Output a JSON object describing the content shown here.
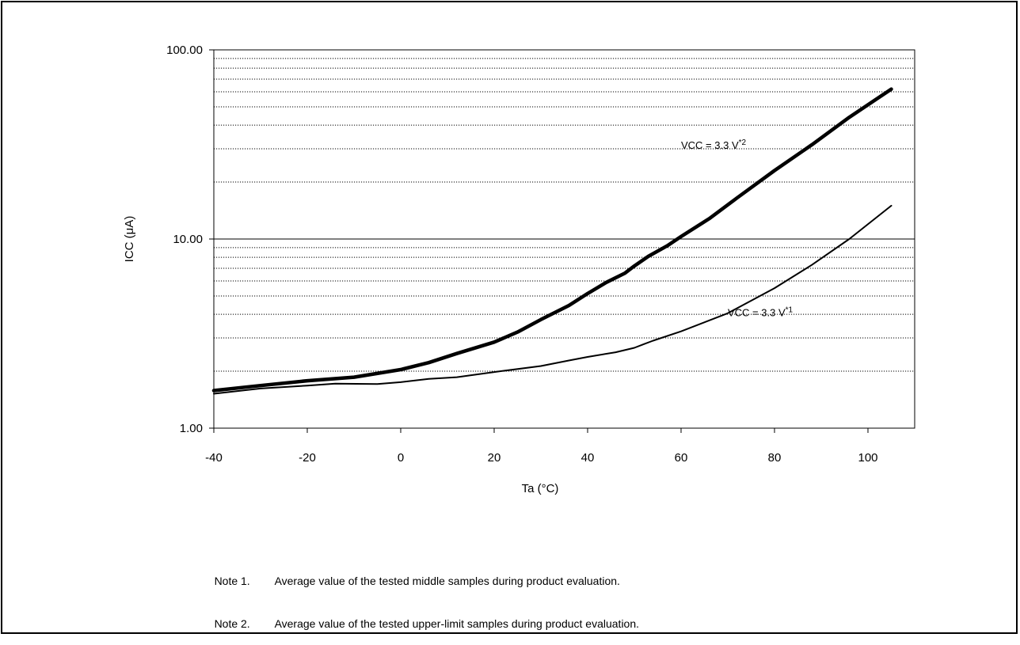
{
  "chart_data": {
    "type": "line",
    "title": "",
    "xlabel": "Ta (°C)",
    "ylabel": "ICC (μA)",
    "xlim": [
      -40,
      110
    ],
    "ylim": [
      1,
      100
    ],
    "y_scale": "log",
    "grid": "horizontal dotted minor lines, solid line at 10.00",
    "x_ticks": [
      -40,
      -20,
      0,
      20,
      40,
      60,
      80,
      100
    ],
    "x_tick_labels": [
      "-40",
      "-20",
      "0",
      "20",
      "40",
      "60",
      "80",
      "100"
    ],
    "y_ticks": [
      1,
      10,
      100
    ],
    "y_tick_labels": [
      "1.00",
      "10.00",
      "100.00"
    ],
    "series": [
      {
        "name": "VCC = 3.3 V*2",
        "label_text": "VCC = 3.3 V",
        "label_sup": "*2",
        "line_weight": "thick",
        "label_anchor": [
          60,
          30
        ],
        "x": [
          -40,
          -30,
          -20,
          -10,
          0,
          6,
          12,
          20,
          25,
          30,
          36,
          40,
          44,
          48,
          50,
          53,
          57,
          60,
          66,
          72,
          80,
          88,
          96,
          105
        ],
        "y": [
          1.58,
          1.68,
          1.78,
          1.86,
          2.04,
          2.22,
          2.48,
          2.85,
          3.22,
          3.75,
          4.45,
          5.15,
          5.9,
          6.6,
          7.2,
          8.1,
          9.2,
          10.3,
          12.8,
          16.5,
          23.0,
          31.5,
          44.0,
          62.0
        ]
      },
      {
        "name": "VCC = 3.3 V*1",
        "label_text": "VCC = 3.3 V",
        "label_sup": "*1",
        "line_weight": "thin",
        "label_anchor": [
          70,
          3.9
        ],
        "x": [
          -40,
          -30,
          -20,
          -14,
          -5,
          0,
          6,
          12,
          20,
          30,
          36,
          40,
          46,
          50,
          52,
          54,
          60,
          70,
          80,
          88,
          96,
          105
        ],
        "y": [
          1.52,
          1.62,
          1.68,
          1.72,
          1.71,
          1.75,
          1.82,
          1.86,
          1.98,
          2.13,
          2.28,
          2.38,
          2.52,
          2.66,
          2.78,
          2.9,
          3.25,
          4.05,
          5.5,
          7.3,
          10.0,
          15.0
        ]
      }
    ]
  },
  "notes": [
    {
      "label": "Note 1.",
      "text": "Average value of the tested middle samples during product evaluation."
    },
    {
      "label": "Note 2.",
      "text": "Average value of the tested upper-limit samples during product evaluation."
    }
  ]
}
